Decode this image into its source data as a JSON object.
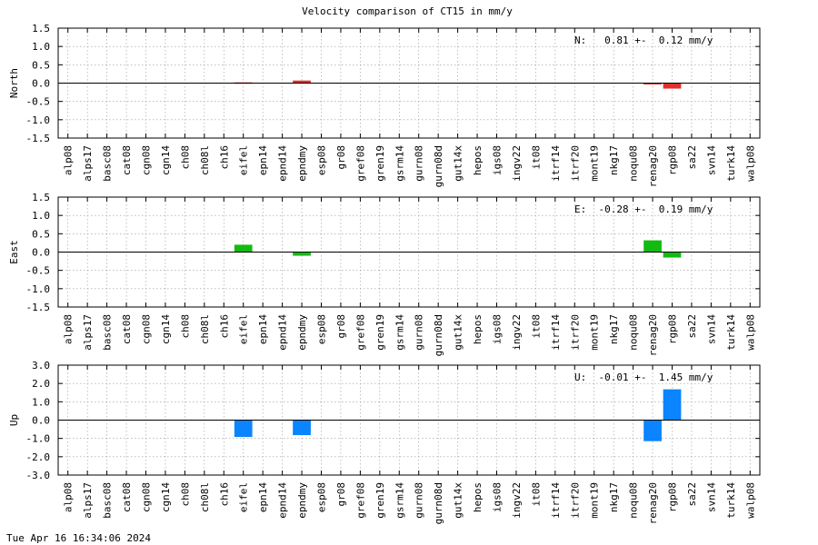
{
  "timestamp": "Tue Apr 16 16:34:06 2024",
  "chart_data": {
    "type": "bar",
    "title": "Velocity comparison of CT15 in mm/y",
    "categories": [
      "alp08",
      "alps17",
      "basc08",
      "cat08",
      "cgn08",
      "cgn14",
      "ch08",
      "ch08l",
      "ch16",
      "eifel",
      "epn14",
      "epnd14",
      "epndmy",
      "esp08",
      "gr08",
      "gref08",
      "gren19",
      "gsrm14",
      "gurn08",
      "gurn08d",
      "gut14x",
      "hepos",
      "igs08",
      "ingv22",
      "it08",
      "itrf14",
      "itrf20",
      "mont19",
      "nkg17",
      "noqu08",
      "renag20",
      "rgp08",
      "sa22",
      "svn14",
      "turk14",
      "walp08"
    ],
    "panels": [
      {
        "ylabel": "North",
        "ylim": [
          -1.5,
          1.5
        ],
        "yticks": [
          1.5,
          1.0,
          0.5,
          0.0,
          -0.5,
          -1.0,
          -1.5
        ],
        "tick_labels": [
          "1.5",
          "1.0",
          "0.5",
          "0.0",
          "-0.5",
          "-1.0",
          "-1.5"
        ],
        "color": "#e0302a",
        "stat": "N:   0.81 +-  0.12 mm/y",
        "values": [
          0,
          0,
          0,
          0,
          0,
          0,
          0,
          0,
          0,
          0.02,
          0,
          0,
          0.07,
          0,
          0,
          0,
          0,
          0,
          0,
          0,
          0,
          0,
          0,
          0,
          0,
          0,
          0,
          0,
          0,
          0,
          -0.03,
          -0.15,
          0,
          0,
          0,
          0
        ]
      },
      {
        "ylabel": "East",
        "ylim": [
          -1.5,
          1.5
        ],
        "yticks": [
          1.5,
          1.0,
          0.5,
          0.0,
          -0.5,
          -1.0,
          -1.5
        ],
        "tick_labels": [
          "1.5",
          "1.0",
          "0.5",
          "0.0",
          "-0.5",
          "-1.0",
          "-1.5"
        ],
        "color": "#12bb12",
        "stat": "E:  -0.28 +-  0.19 mm/y",
        "values": [
          0,
          0,
          0,
          0,
          0,
          0,
          0,
          0,
          0,
          0.2,
          0,
          0,
          -0.1,
          0,
          0,
          0,
          0,
          0,
          0,
          0,
          0,
          0,
          0,
          0,
          0,
          0,
          0,
          0,
          0,
          0,
          0.32,
          -0.15,
          0,
          0,
          0,
          0
        ]
      },
      {
        "ylabel": "Up",
        "ylim": [
          -3.0,
          3.0
        ],
        "yticks": [
          3.0,
          2.0,
          1.0,
          0.0,
          -1.0,
          -2.0,
          -3.0
        ],
        "tick_labels": [
          "3.0",
          "2.0",
          "1.0",
          "0.0",
          "-1.0",
          "-2.0",
          "-3.0"
        ],
        "color": "#0a84ff",
        "stat": "U:  -0.01 +-  1.45 mm/y",
        "values": [
          0,
          0,
          0,
          0,
          0,
          0,
          0,
          0,
          0,
          -0.92,
          0,
          0,
          -0.82,
          0,
          0,
          0,
          0,
          0,
          0,
          0,
          0,
          0,
          0,
          0,
          0,
          0,
          0,
          0,
          0,
          0,
          -1.15,
          1.68,
          0,
          0,
          0,
          0
        ]
      }
    ]
  }
}
